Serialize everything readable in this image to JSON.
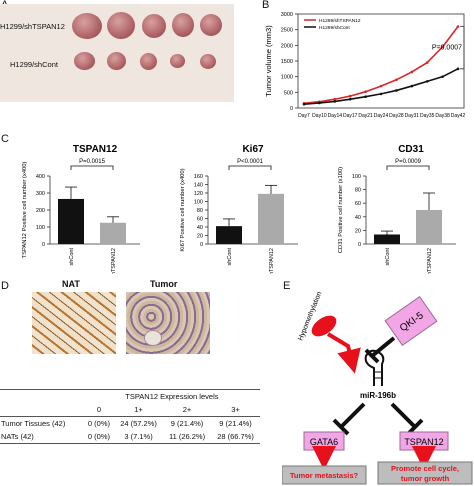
{
  "panel_labels": {
    "a": "A",
    "b": "B",
    "c": "C",
    "d": "D",
    "e": "E"
  },
  "panel_a": {
    "label_top": "H1299/shTSPAN12",
    "label_bottom": "H1299/shCont"
  },
  "chart_data": [
    {
      "type": "line",
      "ylabel": "Tumor volume (mm3)",
      "categories": [
        "Day7",
        "Day10",
        "Day14",
        "Day17",
        "Day21",
        "Day24",
        "Day28",
        "Day31",
        "Day35",
        "Day38",
        "Day42"
      ],
      "ylim": [
        0,
        3000
      ],
      "ticks": [
        0,
        500,
        1000,
        1500,
        2000,
        2500,
        3000
      ],
      "series": [
        {
          "name": "H1299/shTSPAN12",
          "color": "#d62728",
          "values": [
            150,
            200,
            280,
            380,
            520,
            700,
            900,
            1150,
            1450,
            1950,
            2600
          ]
        },
        {
          "name": "H1299/shCont",
          "color": "#111111",
          "values": [
            120,
            160,
            210,
            280,
            360,
            450,
            560,
            700,
            850,
            1000,
            1250
          ]
        }
      ],
      "annotation": "P=0.0007"
    },
    {
      "type": "bar",
      "title": "TSPAN12",
      "ylabel": "TSPAN12 Positive cell number (x400)",
      "categories": [
        "shCont",
        "shTSPAN12"
      ],
      "values": [
        265,
        125
      ],
      "errors": [
        70,
        35
      ],
      "ylim": [
        0,
        400
      ],
      "ticks": [
        0,
        100,
        200,
        300,
        400
      ],
      "colors": [
        "#111111",
        "#aaaaaa"
      ],
      "annotation": "P=0.0015"
    },
    {
      "type": "bar",
      "title": "Ki67",
      "ylabel": "Ki67 Positive cell number (x400)",
      "categories": [
        "shCont",
        "shTSPAN12"
      ],
      "values": [
        42,
        118
      ],
      "errors": [
        17,
        20
      ],
      "ylim": [
        0,
        160
      ],
      "ticks": [
        0,
        20,
        40,
        60,
        80,
        100,
        120,
        140,
        160
      ],
      "colors": [
        "#111111",
        "#aaaaaa"
      ],
      "annotation": "P<0.0001"
    },
    {
      "type": "bar",
      "title": "CD31",
      "ylabel": "CD31 Positive cell number (x100)",
      "categories": [
        "shCont",
        "shTSPAN12"
      ],
      "values": [
        14,
        50
      ],
      "errors": [
        5,
        25
      ],
      "ylim": [
        0,
        100
      ],
      "ticks": [
        0,
        20,
        40,
        60,
        80,
        100
      ],
      "colors": [
        "#111111",
        "#aaaaaa"
      ],
      "annotation": "P=0.0009"
    }
  ],
  "panel_d": {
    "nat_title": "NAT",
    "tumor_title": "Tumor",
    "table_caption": "TSPAN12 Expression levels",
    "headers": [
      "0",
      "1+",
      "2+",
      "3+"
    ],
    "rows": [
      {
        "label": "Tumor Tissues (42)",
        "cells": [
          "0 (0%)",
          "24 (57.2%)",
          "9 (21.4%)",
          "9 (21.4%)"
        ]
      },
      {
        "label": "NATs (42)",
        "cells": [
          "0 (0%)",
          "3 (7.1%)",
          "11 (26.2%)",
          "28 (66.7%)"
        ]
      }
    ]
  },
  "panel_e": {
    "hypomethylation": "Hypomethylation",
    "qki5": "QKI-5",
    "mirna": "miR-196b",
    "gata6": "GATA6",
    "tspan12": "TSPAN12",
    "outcome_left": "Tumor metastasis?",
    "outcome_right_1": "Promote cell cycle,",
    "outcome_right_2": "tumor growth",
    "colors": {
      "pink": "#f2a6e6",
      "red": "#e8111b",
      "gray": "#bdbdbd"
    }
  }
}
